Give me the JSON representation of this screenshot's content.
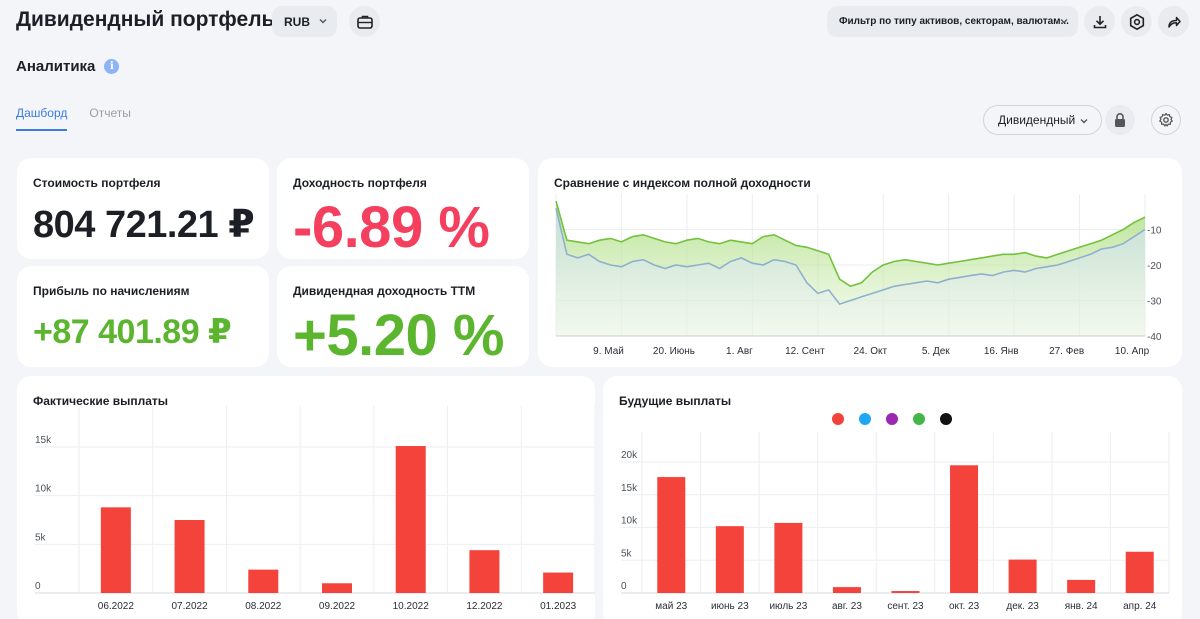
{
  "header": {
    "title": "Дивидендный портфель",
    "currency": "RUB",
    "filter_placeholder": "Фильтр по типу активов, секторам, валютам..."
  },
  "section": {
    "title": "Аналитика",
    "info_glyph": "i"
  },
  "tabs": [
    {
      "label": "Дашборд",
      "active": true
    },
    {
      "label": "Отчеты",
      "active": false
    }
  ],
  "mode_select": {
    "label": "Дивидендный"
  },
  "icons": [
    "briefcase-icon",
    "chevron-down-icon",
    "download-icon",
    "settings-hex-icon",
    "share-icon",
    "info-icon",
    "lock-icon",
    "gear-icon"
  ],
  "metrics": {
    "value": {
      "label": "Стоимость портфеля",
      "value": "804 721.21 ₽"
    },
    "return": {
      "label": "Доходность портфеля",
      "value": "-6.89 %"
    },
    "profit": {
      "label": "Прибыль по начислениям",
      "value": "+87 401.89 ₽"
    },
    "yield": {
      "label": "Дивидендная доходность TTM",
      "value": "+5.20 %"
    }
  },
  "colors": {
    "accent": "#3b7be0",
    "negative": "#f43f5e",
    "positive": "#5bb52e",
    "bar": "#f4433a"
  },
  "chart_data": [
    {
      "type": "area",
      "title": "Сравнение с индексом полной доходности",
      "x_ticks": [
        "9. Май",
        "20. Июнь",
        "1. Авг",
        "12. Сент",
        "24. Окт",
        "5. Дек",
        "16. Янв",
        "27. Фев",
        "10. Апр"
      ],
      "y_ticks": [
        "-10",
        "-20",
        "-30",
        "-40"
      ],
      "ylim": [
        -40,
        0
      ],
      "series": [
        {
          "values": [
            -2,
            -13,
            -13.5,
            -14,
            -13,
            -12.5,
            -13.5,
            -12,
            -11.5,
            -12.5,
            -13.5,
            -14,
            -13,
            -12.5,
            -13.5,
            -14,
            -13,
            -13.5,
            -14,
            -12,
            -11.5,
            -13,
            -14.5,
            -15,
            -16,
            -17,
            -24,
            -26,
            -25,
            -22,
            -20,
            -19,
            -18.5,
            -19,
            -19.5,
            -20,
            -19.5,
            -19,
            -18.5,
            -18,
            -17.5,
            -17,
            -17,
            -16.5,
            -17.5,
            -18,
            -17,
            -16,
            -15,
            -14,
            -13,
            -11.5,
            -10,
            -8,
            -6.5
          ],
          "color": "#72c23c"
        },
        {
          "values": [
            -4,
            -17,
            -18,
            -17,
            -19,
            -20,
            -20.5,
            -19,
            -18.5,
            -20,
            -21,
            -20,
            -20.5,
            -20,
            -19.5,
            -21,
            -19,
            -18,
            -19.5,
            -20,
            -18.5,
            -19,
            -20,
            -25,
            -28,
            -27,
            -31,
            -30,
            -29,
            -28,
            -27,
            -26,
            -25.5,
            -25,
            -24.5,
            -25,
            -24,
            -23.5,
            -23,
            -22.5,
            -23,
            -22,
            -21.5,
            -22,
            -21,
            -20.5,
            -20,
            -19,
            -18,
            -17,
            -15.5,
            -15,
            -14,
            -12,
            -10
          ],
          "color": "#8fb0cc"
        }
      ]
    },
    {
      "type": "bar",
      "title": "Фактические выплаты",
      "categories": [
        "06.2022",
        "07.2022",
        "08.2022",
        "09.2022",
        "10.2022",
        "12.2022",
        "01.2023"
      ],
      "values": [
        8800,
        7500,
        2400,
        1000,
        15100,
        4400,
        2100
      ],
      "y_ticks": [
        "0",
        "5k",
        "10k",
        "15k"
      ],
      "ylim": [
        0,
        15000
      ]
    },
    {
      "type": "bar",
      "title": "Будущие выплаты",
      "categories": [
        "май 23",
        "июнь 23",
        "июль 23",
        "авг. 23",
        "сент. 23",
        "окт. 23",
        "дек. 23",
        "янв. 24",
        "апр. 24"
      ],
      "values": [
        17700,
        10200,
        10700,
        900,
        300,
        19500,
        5100,
        2000,
        6300
      ],
      "y_ticks": [
        "0",
        "5k",
        "10k",
        "15k",
        "20k"
      ],
      "ylim": [
        0,
        20000
      ],
      "legend_colors": [
        "#f4433a",
        "#1ea7f5",
        "#9c27b0",
        "#43b549",
        "#111111"
      ]
    }
  ]
}
